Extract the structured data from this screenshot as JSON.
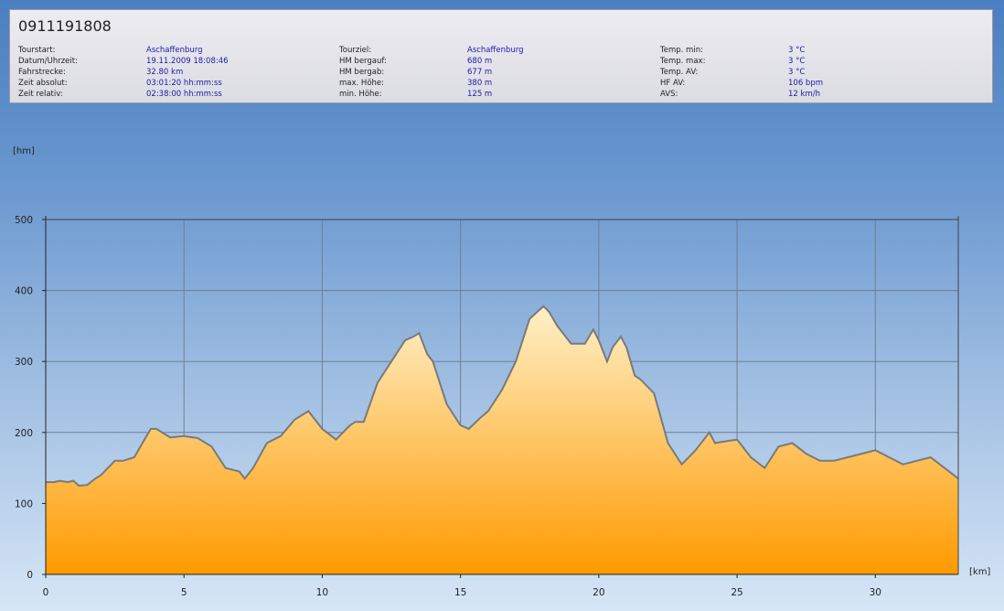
{
  "tour": {
    "title": "0911191808",
    "columns": [
      [
        {
          "label": "Tourstart:",
          "value": "Aschaffenburg"
        },
        {
          "label": "Datum/Uhrzeit:",
          "value": "19.11.2009 18:08:46"
        },
        {
          "label": "Fahrstrecke:",
          "value": "32.80 km"
        },
        {
          "label": "Zeit absolut:",
          "value": "03:01:20 hh:mm:ss"
        },
        {
          "label": "Zeit relativ:",
          "value": "02:38:00 hh:mm:ss"
        }
      ],
      [
        {
          "label": "Tourziel:",
          "value": "Aschaffenburg"
        },
        {
          "label": "HM bergauf:",
          "value": "680 m"
        },
        {
          "label": "HM bergab:",
          "value": "677 m"
        },
        {
          "label": "max. Höhe:",
          "value": "380 m"
        },
        {
          "label": "min. Höhe:",
          "value": "125 m"
        }
      ],
      [
        {
          "label": "Temp. min:",
          "value": "3 °C"
        },
        {
          "label": "Temp. max:",
          "value": "3 °C"
        },
        {
          "label": "Temp. AV:",
          "value": "3 °C"
        },
        {
          "label": "HF AV:",
          "value": "106 bpm"
        },
        {
          "label": "AVS:",
          "value": "12 km/h"
        }
      ]
    ]
  },
  "colors": {
    "fill_top": "#fff0c8",
    "fill_bottom": "#ff9a00",
    "line": "#7a7a7a",
    "grid": "#6e7f95"
  },
  "chart_data": {
    "type": "area",
    "xlabel": "[km]",
    "ylabel": "[hm]",
    "xlim": [
      0,
      33
    ],
    "ylim": [
      0,
      500
    ],
    "xticks": [
      0,
      5,
      10,
      15,
      20,
      25,
      30
    ],
    "yticks": [
      0,
      100,
      200,
      300,
      400,
      500
    ],
    "x": [
      0,
      0.3,
      0.5,
      0.8,
      1.0,
      1.2,
      1.5,
      1.8,
      2.0,
      2.5,
      2.8,
      3.2,
      3.5,
      3.8,
      4.0,
      4.5,
      5.0,
      5.5,
      6.0,
      6.5,
      7.0,
      7.2,
      7.5,
      8.0,
      8.5,
      9.0,
      9.5,
      10.0,
      10.5,
      11.0,
      11.2,
      11.5,
      12.0,
      12.5,
      13.0,
      13.3,
      13.5,
      13.8,
      14.0,
      14.5,
      15.0,
      15.3,
      15.7,
      16.0,
      16.5,
      17.0,
      17.5,
      18.0,
      18.2,
      18.5,
      19.0,
      19.5,
      19.8,
      20.0,
      20.3,
      20.5,
      20.8,
      21.0,
      21.3,
      21.5,
      22.0,
      22.5,
      23.0,
      23.5,
      24.0,
      24.2,
      24.5,
      25.0,
      25.5,
      26.0,
      26.5,
      27.0,
      27.5,
      28.0,
      28.5,
      29.0,
      29.5,
      30.0,
      30.5,
      31.0,
      31.5,
      32.0,
      32.5,
      33.0
    ],
    "y": [
      130,
      130,
      132,
      130,
      132,
      125,
      126,
      135,
      140,
      160,
      160,
      165,
      185,
      205,
      205,
      193,
      195,
      192,
      180,
      150,
      145,
      135,
      150,
      185,
      195,
      218,
      230,
      205,
      190,
      210,
      215,
      215,
      270,
      300,
      330,
      335,
      340,
      310,
      300,
      240,
      210,
      205,
      220,
      230,
      260,
      300,
      360,
      378,
      370,
      350,
      325,
      325,
      345,
      330,
      300,
      320,
      335,
      320,
      280,
      275,
      255,
      185,
      155,
      175,
      200,
      185,
      187,
      190,
      165,
      150,
      180,
      185,
      170,
      160,
      160,
      165,
      170,
      175,
      165,
      155,
      160,
      165,
      150,
      135
    ]
  }
}
